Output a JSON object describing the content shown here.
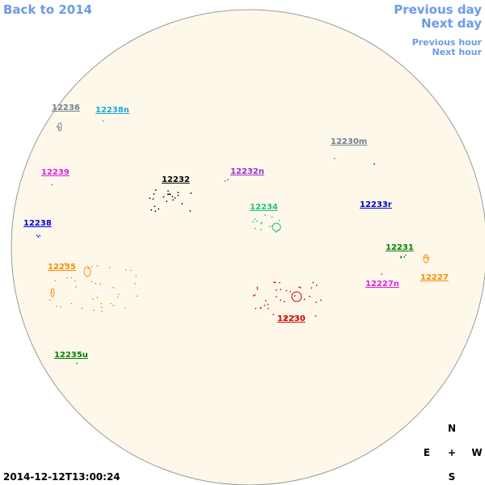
{
  "nav": {
    "back": "Back to 2014",
    "previous_day": "Previous day",
    "next_day": "Next day",
    "previous_hour": "Previous hour",
    "next_hour": "Next hour"
  },
  "regions": [
    {
      "label": "12236",
      "color": "#708090"
    },
    {
      "label": "12238n",
      "color": "#1aa8e0"
    },
    {
      "label": "12230m",
      "color": "#708090"
    },
    {
      "label": "12232n",
      "color": "#9932cc"
    },
    {
      "label": "12239",
      "color": "#e020e0"
    },
    {
      "label": "12232",
      "color": "#000000"
    },
    {
      "label": "12234",
      "color": "#20c080"
    },
    {
      "label": "12233r",
      "color": "#0000c0"
    },
    {
      "label": "12238",
      "color": "#0000e0"
    },
    {
      "label": "12231",
      "color": "#008000"
    },
    {
      "label": "12235",
      "color": "#ff8c00"
    },
    {
      "label": "12227",
      "color": "#ff8c00"
    },
    {
      "label": "12227n",
      "color": "#e020e0"
    },
    {
      "label": "12230",
      "color": "#d00000"
    },
    {
      "label": "12235u",
      "color": "#008000"
    }
  ],
  "timestamp": "2014-12-12T13:00:24",
  "compass": {
    "north": "N",
    "south": "S",
    "east": "E",
    "west": "W",
    "center": "+"
  }
}
